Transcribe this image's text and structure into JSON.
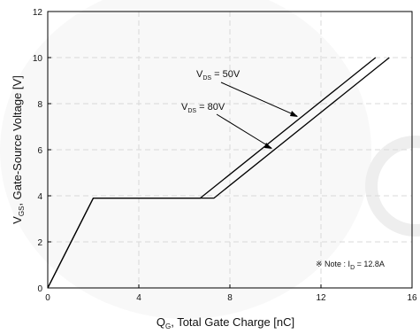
{
  "chart_data": {
    "type": "line",
    "xlabel": {
      "main": "Q",
      "sub": "G",
      "rest": ", Total Gate Charge [nC]"
    },
    "ylabel": {
      "main": "V",
      "sub": "GS",
      "rest": ", Gate-Source Voltage [V]"
    },
    "xlim": [
      0,
      16
    ],
    "ylim": [
      0,
      12
    ],
    "xticks": [
      0,
      4,
      8,
      12,
      16
    ],
    "yticks": [
      0,
      2,
      4,
      6,
      8,
      10,
      12
    ],
    "grid": true,
    "series": [
      {
        "name": "VDS = 50V",
        "points": [
          [
            0,
            0
          ],
          [
            2.0,
            3.9
          ],
          [
            6.7,
            3.9
          ],
          [
            14.4,
            10.0
          ]
        ]
      },
      {
        "name": "VDS = 80V",
        "points": [
          [
            0,
            0
          ],
          [
            2.0,
            3.9
          ],
          [
            7.3,
            3.9
          ],
          [
            15.0,
            10.0
          ]
        ]
      }
    ],
    "annotations": [
      {
        "pre": "V",
        "sub": "DS",
        "post": " = 50V"
      },
      {
        "pre": "V",
        "sub": "DS",
        "post": " = 80V"
      }
    ],
    "note": {
      "pre": "※ Note : I",
      "sub": "D",
      "post": " = 12.8A"
    },
    "colors": {
      "line": "#000000",
      "grid": "#d9d9d9",
      "watermark": "#f0f0f0"
    }
  }
}
